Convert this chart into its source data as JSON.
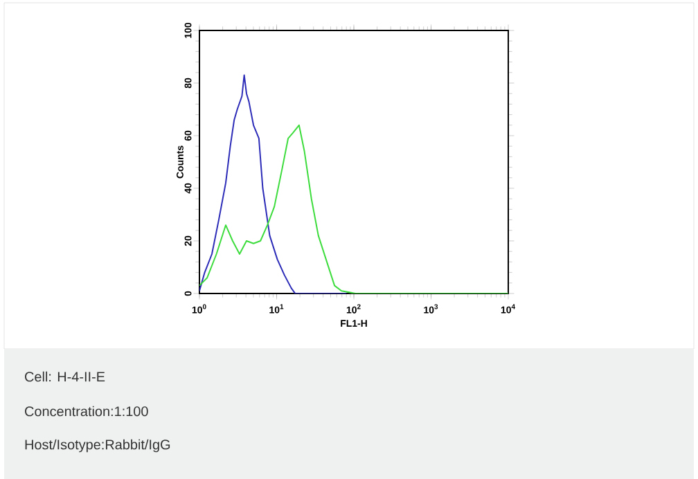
{
  "chart_data": {
    "type": "line",
    "xlabel": "FL1-H",
    "ylabel": "Counts",
    "log": "x",
    "marker": "none",
    "line_style": "solid",
    "xlim": [
      1,
      10000
    ],
    "ylim": [
      0,
      100
    ],
    "xticks": [
      {
        "value": 1,
        "label": "10$^{0}$"
      },
      {
        "value": 10,
        "label": "10$^{1}$"
      },
      {
        "value": 100,
        "label": "10$^{2}$"
      },
      {
        "value": 1000,
        "label": "10$^{3}$"
      },
      {
        "value": 10000,
        "label": "10$^{4}$"
      }
    ],
    "yticks": [
      0,
      20,
      40,
      60,
      80,
      100
    ],
    "series": [
      {
        "color": "#2b2bb8",
        "x": [
          1,
          1.17,
          1.45,
          1.78,
          2.19,
          2.51,
          2.82,
          3.09,
          3.55,
          3.8,
          4.07,
          4.37,
          5.01,
          5.89,
          6.61,
          8.13,
          10.2,
          12.6,
          15.5,
          17.4,
          80
        ],
        "values": [
          1,
          8,
          15,
          28,
          42,
          56,
          66,
          70,
          75,
          83,
          76,
          73,
          64,
          59,
          40,
          22,
          13,
          7,
          2,
          0,
          0
        ]
      },
      {
        "color": "#3ddc3d",
        "x": [
          1,
          1.26,
          1.66,
          2.19,
          2.69,
          3.31,
          4.07,
          5.01,
          6.17,
          7.59,
          9.33,
          11.7,
          14.1,
          16.2,
          19.5,
          22.9,
          28.2,
          34.7,
          44.7,
          56.2,
          69.2,
          105,
          10000
        ],
        "values": [
          3,
          6,
          15,
          26,
          20,
          15,
          20,
          19,
          20,
          26,
          33,
          47,
          59,
          61,
          64,
          54,
          36,
          22,
          12,
          3,
          1,
          0,
          0
        ]
      }
    ],
    "annotations": [
      "Cell: H-4-II-E",
      "Concentration:1:100",
      "Host/Isotype:Rabbit/IgG"
    ]
  }
}
